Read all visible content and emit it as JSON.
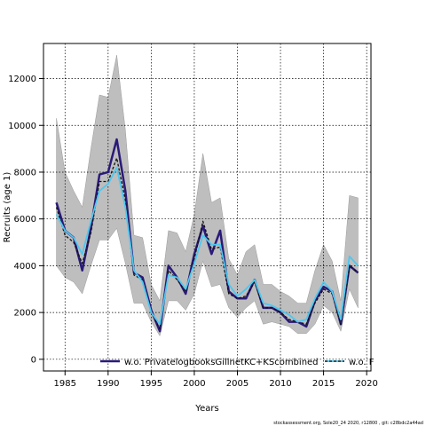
{
  "chart_data": {
    "type": "line",
    "xlabel": "Years",
    "ylabel": "Recruits (age 1)",
    "xlim": [
      1982.5,
      2020.5
    ],
    "ylim": [
      -500,
      13500
    ],
    "xticks": [
      1985,
      1990,
      1995,
      2000,
      2005,
      2010,
      2015,
      2020
    ],
    "yticks": [
      0,
      2000,
      4000,
      6000,
      8000,
      10000,
      12000
    ],
    "grid": true,
    "legend_position": "bottom",
    "footer": "stockassessment.org, Sole20_24 2020, r12800 , git: c28bdc2a44ad",
    "x": [
      1984,
      1985,
      1986,
      1987,
      1988,
      1989,
      1990,
      1991,
      1992,
      1993,
      1994,
      1995,
      1996,
      1997,
      1998,
      1999,
      2000,
      2001,
      2002,
      2003,
      2004,
      2005,
      2006,
      2007,
      2008,
      2009,
      2010,
      2011,
      2012,
      2013,
      2014,
      2015,
      2016,
      2017,
      2018,
      2019
    ],
    "band": {
      "upper": [
        10300,
        8000,
        7200,
        6500,
        9000,
        11300,
        11200,
        13000,
        9800,
        5300,
        5200,
        3200,
        2500,
        5500,
        5400,
        4600,
        6200,
        8800,
        6700,
        6900,
        4300,
        3600,
        4600,
        4900,
        3200,
        3200,
        2900,
        2700,
        2400,
        2400,
        3800,
        4900,
        4200,
        2500,
        7000,
        6900
      ],
      "lower": [
        4000,
        3500,
        3300,
        2800,
        4000,
        5100,
        5100,
        5600,
        4100,
        2400,
        2400,
        1600,
        1000,
        2500,
        2500,
        2100,
        2800,
        4200,
        3100,
        3200,
        2200,
        1800,
        2200,
        2500,
        1500,
        1600,
        1500,
        1400,
        1100,
        1100,
        1500,
        2300,
        2000,
        1200,
        3000,
        2200
      ]
    },
    "series": [
      {
        "name": "w.o. PrivatelogbooksGillnetKC+KScombined",
        "color": "#2b1a78",
        "values": [
          6700,
          5500,
          5200,
          3800,
          5600,
          7900,
          8000,
          9400,
          7200,
          3700,
          3500,
          2100,
          1200,
          4000,
          3500,
          2800,
          4500,
          5700,
          4500,
          5500,
          2900,
          2600,
          2600,
          3400,
          2200,
          2200,
          2000,
          1600,
          1600,
          1400,
          2500,
          3100,
          2900,
          1500,
          4000,
          3700
        ]
      },
      {
        "name": "",
        "color": "#111111",
        "dashed": true,
        "values": [
          6500,
          5300,
          5000,
          4100,
          5400,
          7600,
          7600,
          8600,
          6800,
          3600,
          3400,
          2000,
          1300,
          3800,
          3400,
          2900,
          4300,
          5900,
          4700,
          4800,
          2800,
          2600,
          2700,
          3300,
          2200,
          2200,
          2000,
          1700,
          1600,
          1500,
          2400,
          3000,
          2800,
          1500,
          4000,
          3700
        ]
      },
      {
        "name": "w.o. F",
        "color": "#4dc8f0",
        "values": [
          6200,
          5500,
          5200,
          4500,
          5900,
          7200,
          7500,
          8200,
          6500,
          3800,
          3300,
          2000,
          1500,
          3600,
          3500,
          3000,
          4100,
          5300,
          4900,
          4900,
          3200,
          2700,
          3000,
          3400,
          2400,
          2300,
          2100,
          1900,
          1600,
          1700,
          2600,
          3300,
          2900,
          1700,
          4400,
          4000
        ]
      }
    ]
  }
}
